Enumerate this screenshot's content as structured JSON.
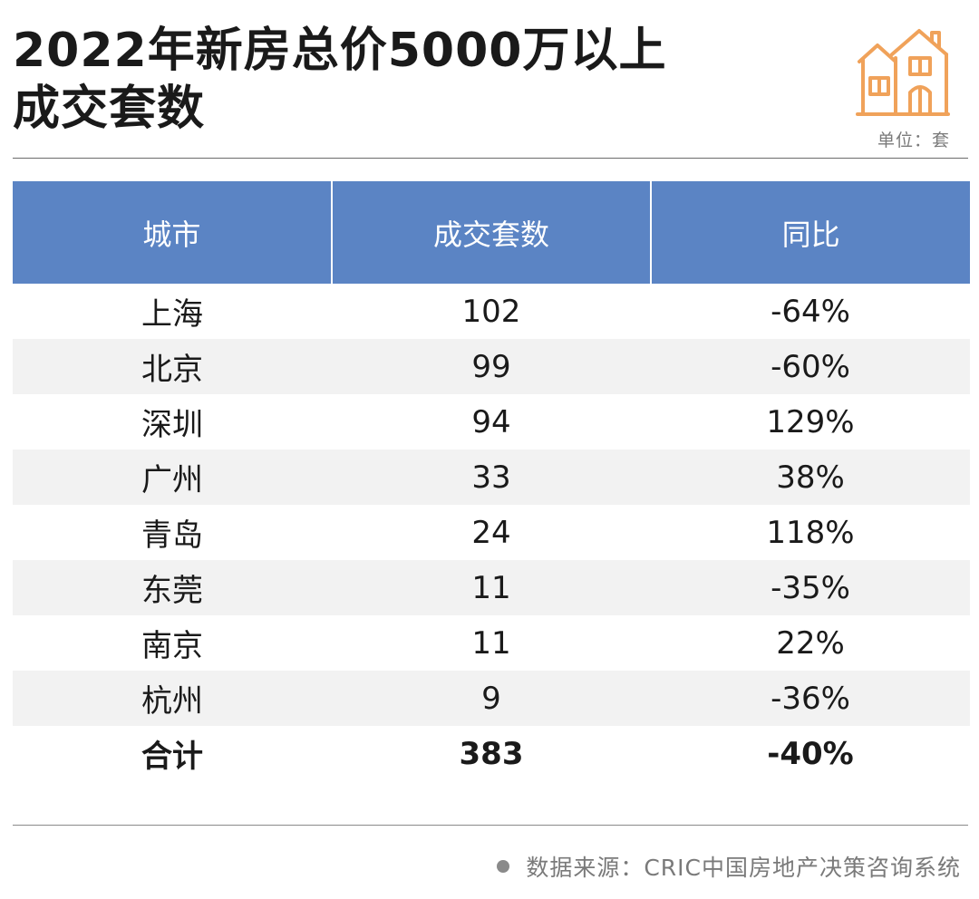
{
  "header": {
    "title_line1": "2022年新房总价5000万以上",
    "title_line2": "成交套数",
    "unit": "单位：套",
    "icon": "house-icon",
    "icon_color": "#f0a25a"
  },
  "table": {
    "columns": [
      "城市",
      "成交套数",
      "同比"
    ],
    "header_color": "#5b84c4",
    "rows": [
      {
        "city": "上海",
        "count": "102",
        "yoy": "-64%"
      },
      {
        "city": "北京",
        "count": "99",
        "yoy": "-60%"
      },
      {
        "city": "深圳",
        "count": "94",
        "yoy": "129%"
      },
      {
        "city": "广州",
        "count": "33",
        "yoy": "38%"
      },
      {
        "city": "青岛",
        "count": "24",
        "yoy": "118%"
      },
      {
        "city": "东莞",
        "count": "11",
        "yoy": "-35%"
      },
      {
        "city": "南京",
        "count": "11",
        "yoy": "22%"
      },
      {
        "city": "杭州",
        "count": "9",
        "yoy": "-36%"
      }
    ],
    "total": {
      "city": "合计",
      "count": "383",
      "yoy": "-40%"
    }
  },
  "footer": {
    "source": "数据来源：CRIC中国房地产决策咨询系统"
  }
}
